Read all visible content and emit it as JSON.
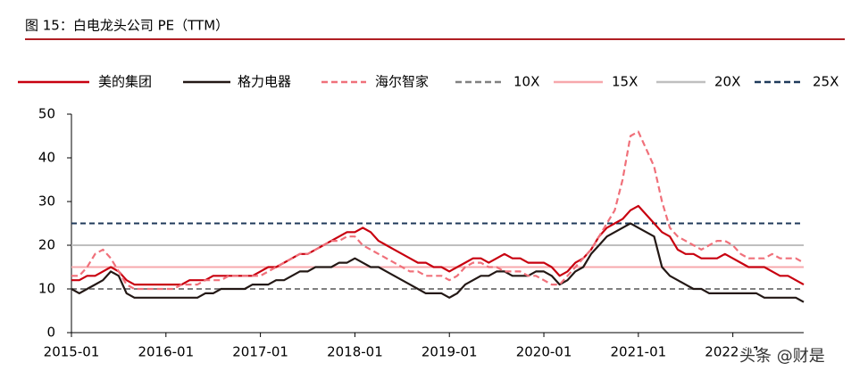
{
  "chart_data": {
    "type": "line",
    "title": "图 15：白电龙头公司 PE（TTM）",
    "watermark": "头条 @财是",
    "x": [
      "2015-01",
      "2015-02",
      "2015-03",
      "2015-04",
      "2015-05",
      "2015-06",
      "2015-07",
      "2015-08",
      "2015-09",
      "2015-10",
      "2015-11",
      "2015-12",
      "2016-01",
      "2016-02",
      "2016-03",
      "2016-04",
      "2016-05",
      "2016-06",
      "2016-07",
      "2016-08",
      "2016-09",
      "2016-10",
      "2016-11",
      "2016-12",
      "2017-01",
      "2017-02",
      "2017-03",
      "2017-04",
      "2017-05",
      "2017-06",
      "2017-07",
      "2017-08",
      "2017-09",
      "2017-10",
      "2017-11",
      "2017-12",
      "2018-01",
      "2018-02",
      "2018-03",
      "2018-04",
      "2018-05",
      "2018-06",
      "2018-07",
      "2018-08",
      "2018-09",
      "2018-10",
      "2018-11",
      "2018-12",
      "2019-01",
      "2019-02",
      "2019-03",
      "2019-04",
      "2019-05",
      "2019-06",
      "2019-07",
      "2019-08",
      "2019-09",
      "2019-10",
      "2019-11",
      "2019-12",
      "2020-01",
      "2020-02",
      "2020-03",
      "2020-04",
      "2020-05",
      "2020-06",
      "2020-07",
      "2020-08",
      "2020-09",
      "2020-10",
      "2020-11",
      "2020-12",
      "2021-01",
      "2021-02",
      "2021-03",
      "2021-04",
      "2021-05",
      "2021-06",
      "2021-07",
      "2021-08",
      "2021-09",
      "2021-10",
      "2021-11",
      "2021-12",
      "2022-01",
      "2022-02",
      "2022-03",
      "2022-04",
      "2022-05",
      "2022-06",
      "2022-07",
      "2022-08",
      "2022-09",
      "2022-10"
    ],
    "series": [
      {
        "name": "美的集团",
        "color": "#c8000f",
        "dash": false,
        "values": [
          12,
          12,
          13,
          13,
          14,
          15,
          14,
          12,
          11,
          11,
          11,
          11,
          11,
          11,
          11,
          12,
          12,
          12,
          13,
          13,
          13,
          13,
          13,
          13,
          14,
          15,
          15,
          16,
          17,
          18,
          18,
          19,
          20,
          21,
          22,
          23,
          23,
          24,
          23,
          21,
          20,
          19,
          18,
          17,
          16,
          16,
          15,
          15,
          14,
          15,
          16,
          17,
          17,
          16,
          17,
          18,
          17,
          17,
          16,
          16,
          16,
          15,
          13,
          14,
          16,
          17,
          19,
          22,
          24,
          25,
          26,
          28,
          29,
          27,
          25,
          23,
          22,
          19,
          18,
          18,
          17,
          17,
          17,
          18,
          17,
          16,
          15,
          15,
          15,
          14,
          13,
          13,
          12,
          11
        ]
      },
      {
        "name": "格力电器",
        "color": "#231815",
        "dash": false,
        "values": [
          10,
          9,
          10,
          11,
          12,
          14,
          13,
          9,
          8,
          8,
          8,
          8,
          8,
          8,
          8,
          8,
          8,
          9,
          9,
          10,
          10,
          10,
          10,
          11,
          11,
          11,
          12,
          12,
          13,
          14,
          14,
          15,
          15,
          15,
          16,
          16,
          17,
          16,
          15,
          15,
          14,
          13,
          12,
          11,
          10,
          9,
          9,
          9,
          8,
          9,
          11,
          12,
          13,
          13,
          14,
          14,
          13,
          13,
          13,
          14,
          14,
          13,
          11,
          12,
          14,
          15,
          18,
          20,
          22,
          23,
          24,
          25,
          24,
          23,
          22,
          15,
          13,
          12,
          11,
          10,
          10,
          9,
          9,
          9,
          9,
          9,
          9,
          9,
          8,
          8,
          8,
          8,
          8,
          7
        ]
      },
      {
        "name": "海尔智家",
        "color": "#f0707a",
        "dash": true,
        "values": [
          13,
          13,
          15,
          18,
          19,
          17,
          14,
          11,
          10,
          10,
          10,
          10,
          10,
          10,
          11,
          11,
          11,
          12,
          12,
          12,
          13,
          13,
          13,
          13,
          13,
          14,
          15,
          16,
          17,
          18,
          18,
          19,
          20,
          21,
          21,
          22,
          22,
          20,
          19,
          18,
          17,
          16,
          15,
          14,
          14,
          13,
          13,
          13,
          12,
          13,
          15,
          16,
          16,
          15,
          15,
          14,
          14,
          14,
          13,
          13,
          12,
          11,
          11,
          13,
          15,
          17,
          19,
          22,
          25,
          28,
          35,
          45,
          46,
          42,
          38,
          30,
          24,
          22,
          21,
          20,
          19,
          20,
          21,
          21,
          20,
          18,
          17,
          17,
          17,
          18,
          17,
          17,
          17,
          16
        ]
      }
    ],
    "reference_lines": [
      {
        "name": "10X",
        "value": 10,
        "color": "#808080",
        "dash": true
      },
      {
        "name": "15X",
        "value": 15,
        "color": "#f7a8ac",
        "dash": false
      },
      {
        "name": "20X",
        "value": 20,
        "color": "#bfbfbf",
        "dash": false
      },
      {
        "name": "25X",
        "value": 25,
        "color": "#1f3a5a",
        "dash": true
      }
    ],
    "ylim": [
      0,
      50
    ],
    "yticks": [
      0,
      10,
      20,
      30,
      40,
      50
    ],
    "xticks": [
      "2015-01",
      "2016-01",
      "2017-01",
      "2018-01",
      "2019-01",
      "2020-01",
      "2021-01",
      "2022-01"
    ]
  }
}
